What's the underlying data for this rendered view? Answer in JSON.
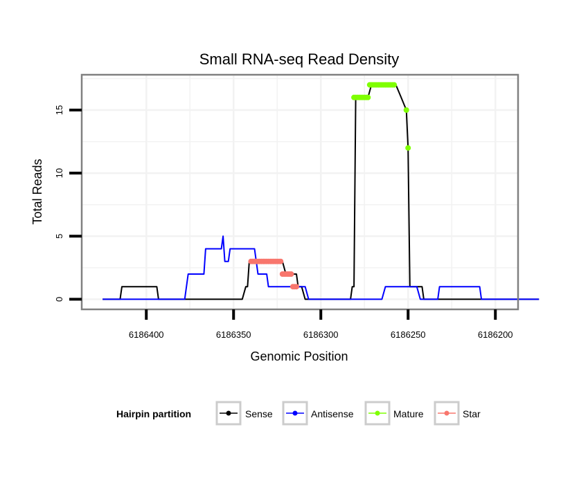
{
  "chart_data": {
    "type": "line",
    "title": "Small RNA-seq Read Density",
    "xlabel": "Genomic Position",
    "ylabel": "Total Reads",
    "x_reversed": true,
    "xlim": [
      6186437,
      6186187
    ],
    "ylim": [
      -0.8,
      17.8
    ],
    "x_ticks": [
      6186400,
      6186350,
      6186300,
      6186250,
      6186200
    ],
    "x_tick_labels": [
      "6186400",
      "6186350",
      "6186300",
      "6186250",
      "6186200"
    ],
    "y_ticks": [
      0,
      5,
      10,
      15
    ],
    "y_tick_labels": [
      "0",
      "5",
      "10",
      "15"
    ],
    "grid": true,
    "legend": {
      "title": "Hairpin partition",
      "position": "bottom",
      "entries": [
        "Sense",
        "Antisense",
        "Mature",
        "Star"
      ]
    },
    "series": [
      {
        "name": "Sense",
        "color": "#000000",
        "kind": "line",
        "points": [
          [
            6186425,
            0
          ],
          [
            6186415,
            0
          ],
          [
            6186414,
            1
          ],
          [
            6186394,
            1
          ],
          [
            6186393,
            0
          ],
          [
            6186345,
            0
          ],
          [
            6186343,
            1
          ],
          [
            6186342,
            1
          ],
          [
            6186341,
            3
          ],
          [
            6186322,
            3
          ],
          [
            6186320,
            2
          ],
          [
            6186314,
            2
          ],
          [
            6186313,
            1
          ],
          [
            6186311,
            1
          ],
          [
            6186309,
            0
          ],
          [
            6186283,
            0
          ],
          [
            6186282,
            1
          ],
          [
            6186281,
            1
          ],
          [
            6186280,
            16
          ],
          [
            6186273,
            16
          ],
          [
            6186271,
            17
          ],
          [
            6186257,
            17
          ],
          [
            6186254,
            16
          ],
          [
            6186251,
            15
          ],
          [
            6186250,
            12
          ],
          [
            6186249,
            1
          ],
          [
            6186242,
            1
          ],
          [
            6186241,
            0
          ],
          [
            6186175,
            0
          ]
        ]
      },
      {
        "name": "Antisense",
        "color": "#0000ff",
        "kind": "line",
        "points": [
          [
            6186425,
            0
          ],
          [
            6186378,
            0
          ],
          [
            6186376,
            2
          ],
          [
            6186367,
            2
          ],
          [
            6186366,
            4
          ],
          [
            6186357,
            4
          ],
          [
            6186356,
            5
          ],
          [
            6186355,
            3
          ],
          [
            6186353,
            3
          ],
          [
            6186352,
            4
          ],
          [
            6186338,
            4
          ],
          [
            6186336,
            2
          ],
          [
            6186331,
            2
          ],
          [
            6186330,
            1
          ],
          [
            6186309,
            1
          ],
          [
            6186307,
            0
          ],
          [
            6186279,
            0
          ],
          [
            6186277,
            0
          ],
          [
            6186265,
            0
          ],
          [
            6186263,
            1
          ],
          [
            6186245,
            1
          ],
          [
            6186243,
            0
          ],
          [
            6186233,
            0
          ],
          [
            6186232,
            1
          ],
          [
            6186209,
            1
          ],
          [
            6186208,
            0
          ],
          [
            6186175,
            0
          ]
        ]
      },
      {
        "name": "Mature",
        "color": "#7fff00",
        "kind": "points",
        "points": [
          [
            6186281,
            16
          ],
          [
            6186280,
            16
          ],
          [
            6186279,
            16
          ],
          [
            6186278,
            16
          ],
          [
            6186277,
            16
          ],
          [
            6186276,
            16
          ],
          [
            6186275,
            16
          ],
          [
            6186274,
            16
          ],
          [
            6186273,
            16
          ],
          [
            6186272,
            17
          ],
          [
            6186271,
            17
          ],
          [
            6186270,
            17
          ],
          [
            6186269,
            17
          ],
          [
            6186268,
            17
          ],
          [
            6186267,
            17
          ],
          [
            6186266,
            17
          ],
          [
            6186265,
            17
          ],
          [
            6186264,
            17
          ],
          [
            6186263,
            17
          ],
          [
            6186262,
            17
          ],
          [
            6186261,
            17
          ],
          [
            6186260,
            17
          ],
          [
            6186259,
            17
          ],
          [
            6186258,
            17
          ],
          [
            6186251,
            15
          ],
          [
            6186250,
            12
          ]
        ]
      },
      {
        "name": "Star",
        "color": "#f8766d",
        "kind": "points",
        "points": [
          [
            6186340,
            3
          ],
          [
            6186339,
            3
          ],
          [
            6186338,
            3
          ],
          [
            6186337,
            3
          ],
          [
            6186336,
            3
          ],
          [
            6186335,
            3
          ],
          [
            6186334,
            3
          ],
          [
            6186333,
            3
          ],
          [
            6186332,
            3
          ],
          [
            6186331,
            3
          ],
          [
            6186330,
            3
          ],
          [
            6186329,
            3
          ],
          [
            6186328,
            3
          ],
          [
            6186327,
            3
          ],
          [
            6186326,
            3
          ],
          [
            6186325,
            3
          ],
          [
            6186324,
            3
          ],
          [
            6186323,
            3
          ],
          [
            6186322,
            2
          ],
          [
            6186321,
            2
          ],
          [
            6186320,
            2
          ],
          [
            6186319,
            2
          ],
          [
            6186318,
            2
          ],
          [
            6186317,
            2
          ],
          [
            6186316,
            1
          ],
          [
            6186315,
            1
          ],
          [
            6186314,
            1
          ]
        ]
      }
    ]
  }
}
